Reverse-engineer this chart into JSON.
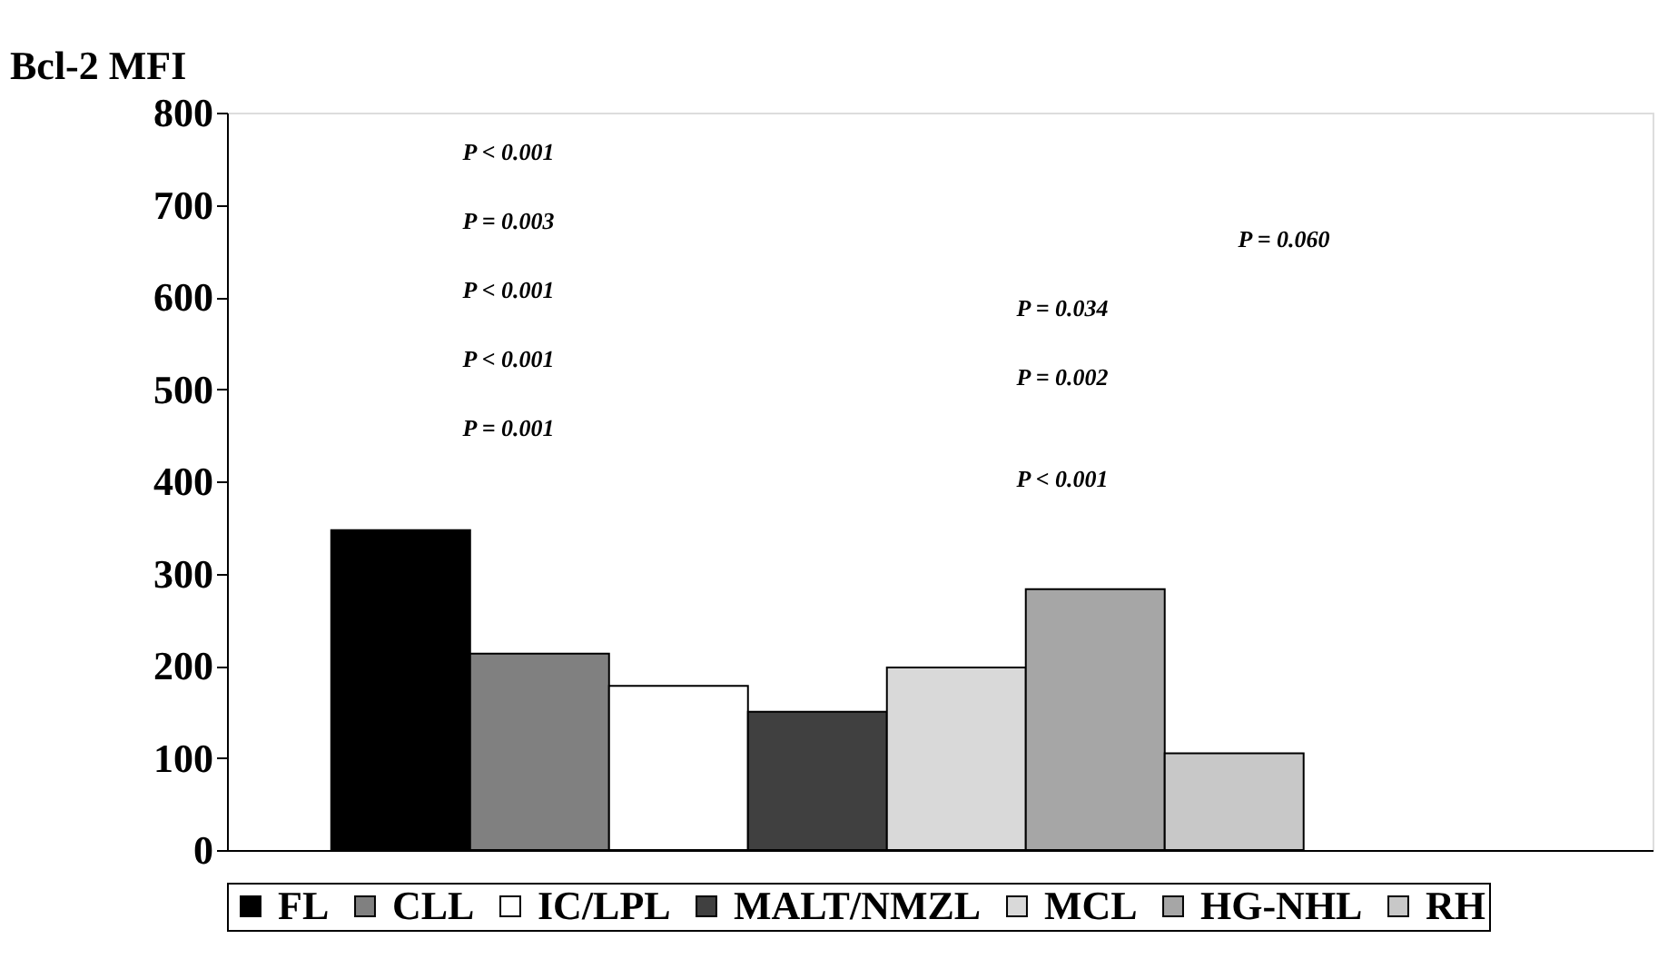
{
  "chart_data": {
    "type": "bar",
    "ylabel": "Bcl-2 MFI",
    "categories": [
      null
    ],
    "series": [
      {
        "name": "FL",
        "color": "#000000",
        "values": [
          347
        ]
      },
      {
        "name": "CLL",
        "color": "#808080",
        "values": [
          213
        ]
      },
      {
        "name": "IC/LPL",
        "color": "#ffffff",
        "values": [
          178
        ]
      },
      {
        "name": "MALT/NMZL",
        "color": "#404040",
        "values": [
          150
        ]
      },
      {
        "name": "MCL",
        "color": "#d9d9d9",
        "values": [
          198
        ]
      },
      {
        "name": "HG-NHL",
        "color": "#a6a6a6",
        "values": [
          283
        ]
      },
      {
        "name": "RH",
        "color": "#c8c8c8",
        "values": [
          105
        ]
      }
    ],
    "ylim": [
      0,
      800
    ],
    "yticks": [
      0,
      100,
      200,
      300,
      400,
      500,
      600,
      700,
      800
    ],
    "tick_labels": "y",
    "grid": false,
    "legend": "bottom",
    "annotations": [
      "P  < 0.001",
      "P  = 0.003",
      "P  < 0.001",
      "P  < 0.001",
      "P  = 0.001",
      "P  = 0.060",
      "P  = 0.034",
      "P  = 0.002",
      "P  < 0.001"
    ]
  }
}
